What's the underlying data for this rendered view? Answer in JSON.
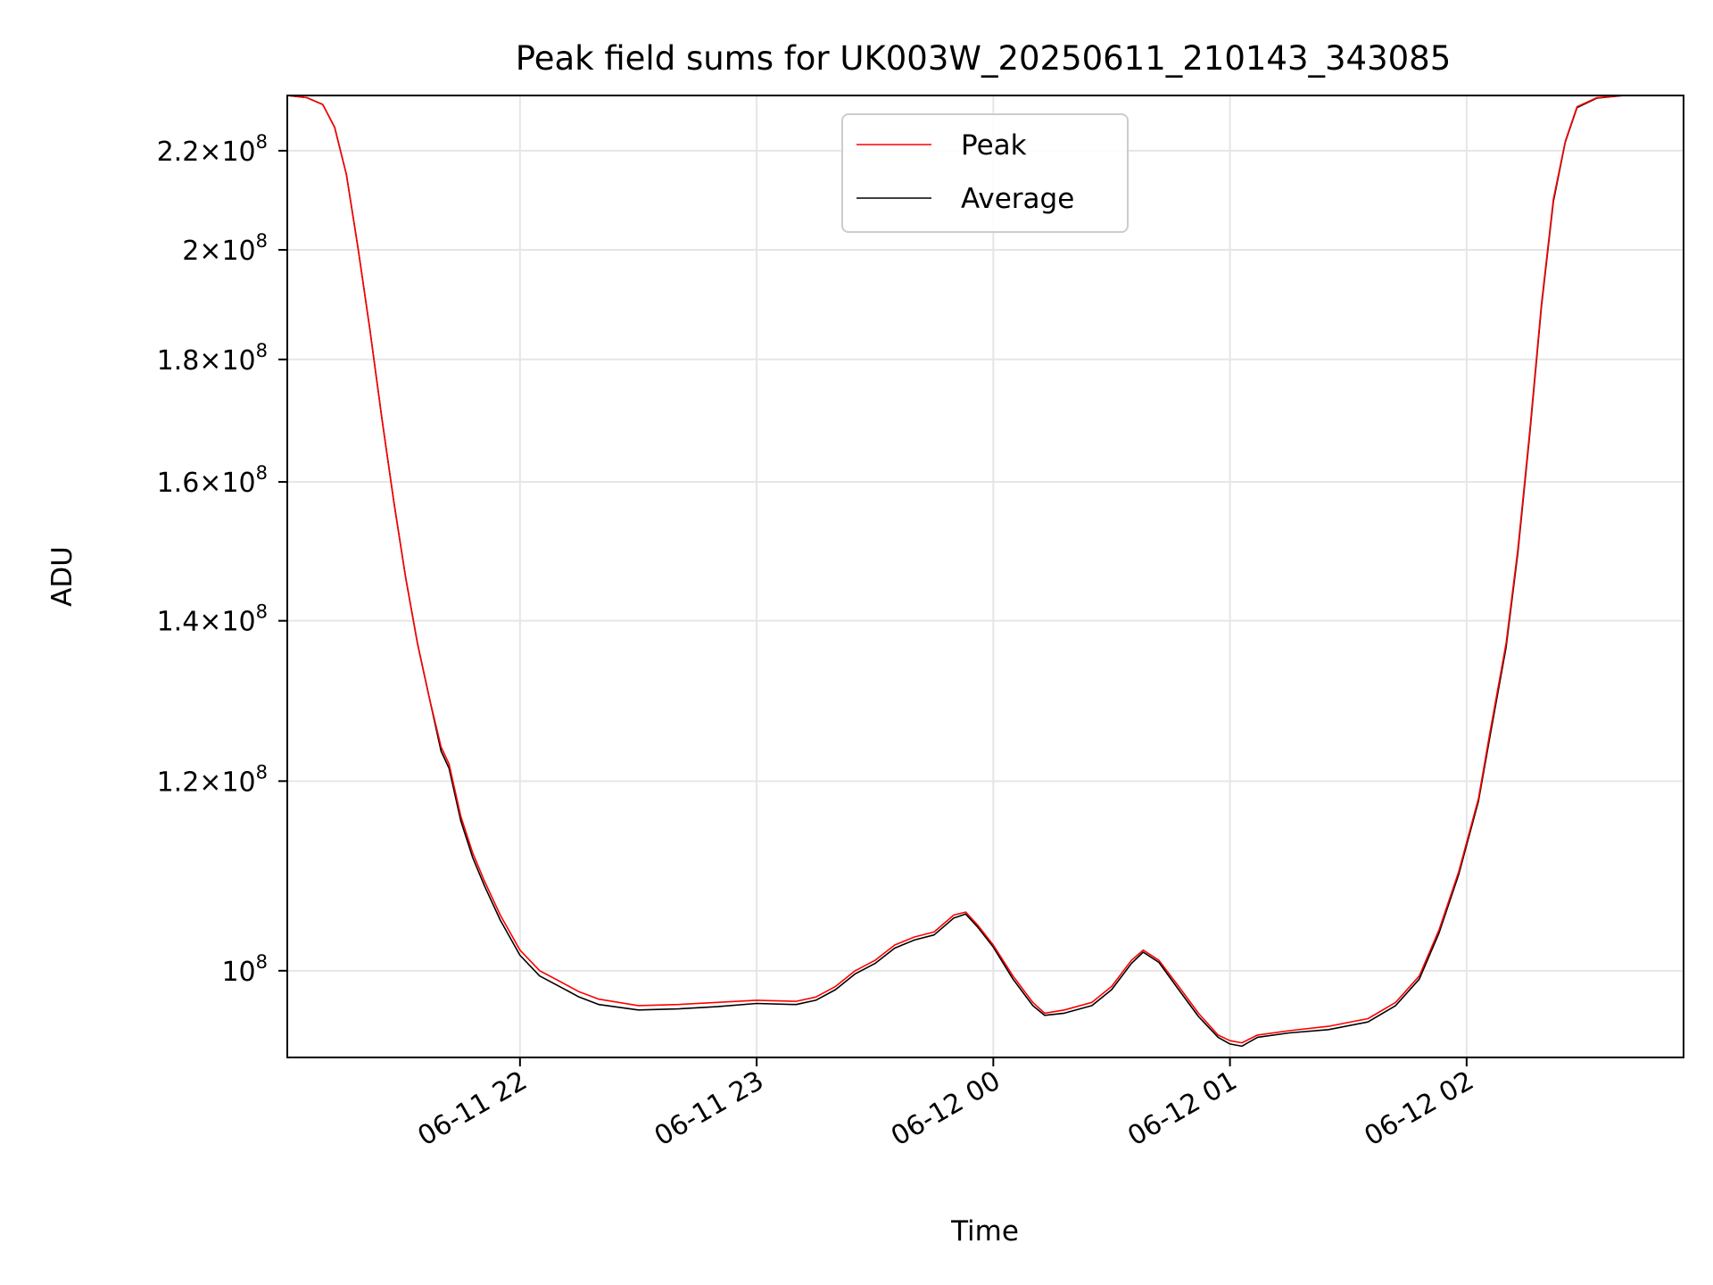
{
  "chart_data": {
    "type": "line",
    "title": "Peak field sums for UK003W_20250611_210143_343085",
    "xlabel": "Time",
    "ylabel": "ADU",
    "xlim": [
      "2025-06-11 21:01",
      "2025-06-12 02:55"
    ],
    "ylim": [
      92000000,
      232000000
    ],
    "y_scale": "log",
    "grid": true,
    "legend": {
      "placement": "upper center",
      "entries": [
        "Peak",
        "Average"
      ]
    },
    "x_ticks": [
      {
        "value": "2025-06-11 22:00",
        "label": "06-11 22"
      },
      {
        "value": "2025-06-11 23:00",
        "label": "06-11 23"
      },
      {
        "value": "2025-06-12 00:00",
        "label": "06-12 00"
      },
      {
        "value": "2025-06-12 01:00",
        "label": "06-12 01"
      },
      {
        "value": "2025-06-12 02:00",
        "label": "06-12 02"
      }
    ],
    "y_ticks": [
      {
        "value": 100000000,
        "base": "10",
        "exp": "8"
      },
      {
        "value": 120000000,
        "base": "1.2×10",
        "exp": "8"
      },
      {
        "value": 140000000,
        "base": "1.4×10",
        "exp": "8"
      },
      {
        "value": 160000000,
        "base": "1.6×10",
        "exp": "8"
      },
      {
        "value": 180000000,
        "base": "1.8×10",
        "exp": "8"
      },
      {
        "value": 200000000,
        "base": "2×10",
        "exp": "8"
      },
      {
        "value": 220000000,
        "base": "2.2×10",
        "exp": "8"
      }
    ],
    "series": [
      {
        "name": "Peak",
        "color": "#ff0000",
        "points": [
          [
            "2025-06-11 21:01",
            232000000
          ],
          [
            "2025-06-11 21:06",
            231500000
          ],
          [
            "2025-06-11 21:10",
            230000000
          ],
          [
            "2025-06-11 21:13",
            225000000
          ],
          [
            "2025-06-11 21:16",
            215000000
          ],
          [
            "2025-06-11 21:19",
            200000000
          ],
          [
            "2025-06-11 21:22",
            185000000
          ],
          [
            "2025-06-11 21:25",
            170000000
          ],
          [
            "2025-06-11 21:28",
            157000000
          ],
          [
            "2025-06-11 21:31",
            146000000
          ],
          [
            "2025-06-11 21:34",
            137000000
          ],
          [
            "2025-06-11 21:37",
            130000000
          ],
          [
            "2025-06-11 21:40",
            124000000
          ],
          [
            "2025-06-11 21:42",
            122000000
          ],
          [
            "2025-06-11 21:45",
            116000000
          ],
          [
            "2025-06-11 21:48",
            112000000
          ],
          [
            "2025-06-11 21:51",
            109000000
          ],
          [
            "2025-06-11 21:55",
            105500000
          ],
          [
            "2025-06-11 22:00",
            102000000
          ],
          [
            "2025-06-11 22:05",
            100000000
          ],
          [
            "2025-06-11 22:10",
            99000000
          ],
          [
            "2025-06-11 22:15",
            98000000
          ],
          [
            "2025-06-11 22:20",
            97300000
          ],
          [
            "2025-06-11 22:30",
            96700000
          ],
          [
            "2025-06-11 22:40",
            96800000
          ],
          [
            "2025-06-11 22:50",
            97000000
          ],
          [
            "2025-06-11 23:00",
            97200000
          ],
          [
            "2025-06-11 23:10",
            97100000
          ],
          [
            "2025-06-11 23:15",
            97500000
          ],
          [
            "2025-06-11 23:20",
            98500000
          ],
          [
            "2025-06-11 23:25",
            100000000
          ],
          [
            "2025-06-11 23:30",
            101000000
          ],
          [
            "2025-06-11 23:35",
            102500000
          ],
          [
            "2025-06-11 23:40",
            103300000
          ],
          [
            "2025-06-11 23:45",
            103800000
          ],
          [
            "2025-06-11 23:50",
            105500000
          ],
          [
            "2025-06-11 23:53",
            105800000
          ],
          [
            "2025-06-11 23:56",
            104500000
          ],
          [
            "2025-06-12 00:00",
            102500000
          ],
          [
            "2025-06-12 00:05",
            99500000
          ],
          [
            "2025-06-12 00:10",
            97000000
          ],
          [
            "2025-06-12 00:13",
            96000000
          ],
          [
            "2025-06-12 00:18",
            96300000
          ],
          [
            "2025-06-12 00:25",
            97000000
          ],
          [
            "2025-06-12 00:30",
            98500000
          ],
          [
            "2025-06-12 00:35",
            101000000
          ],
          [
            "2025-06-12 00:38",
            102000000
          ],
          [
            "2025-06-12 00:42",
            101000000
          ],
          [
            "2025-06-12 00:47",
            98500000
          ],
          [
            "2025-06-12 00:52",
            96000000
          ],
          [
            "2025-06-12 00:57",
            94000000
          ],
          [
            "2025-06-12 01:00",
            93500000
          ],
          [
            "2025-06-12 01:03",
            93300000
          ],
          [
            "2025-06-12 01:07",
            94000000
          ],
          [
            "2025-06-12 01:15",
            94400000
          ],
          [
            "2025-06-12 01:25",
            94800000
          ],
          [
            "2025-06-12 01:35",
            95500000
          ],
          [
            "2025-06-12 01:42",
            97000000
          ],
          [
            "2025-06-12 01:48",
            99500000
          ],
          [
            "2025-06-12 01:53",
            104000000
          ],
          [
            "2025-06-12 01:58",
            110000000
          ],
          [
            "2025-06-12 02:03",
            118000000
          ],
          [
            "2025-06-12 02:06",
            126000000
          ],
          [
            "2025-06-12 02:10",
            137000000
          ],
          [
            "2025-06-12 02:13",
            150000000
          ],
          [
            "2025-06-12 02:16",
            168000000
          ],
          [
            "2025-06-12 02:19",
            190000000
          ],
          [
            "2025-06-12 02:22",
            210000000
          ],
          [
            "2025-06-12 02:25",
            222000000
          ],
          [
            "2025-06-12 02:28",
            229500000
          ],
          [
            "2025-06-12 02:33",
            231500000
          ],
          [
            "2025-06-12 02:40",
            232000000
          ],
          [
            "2025-06-12 02:55",
            232000000
          ]
        ]
      },
      {
        "name": "Average",
        "color": "#000000",
        "points": [
          [
            "2025-06-11 21:01",
            232000000
          ],
          [
            "2025-06-11 21:06",
            231500000
          ],
          [
            "2025-06-11 21:10",
            230000000
          ],
          [
            "2025-06-11 21:13",
            225000000
          ],
          [
            "2025-06-11 21:16",
            215000000
          ],
          [
            "2025-06-11 21:19",
            200000000
          ],
          [
            "2025-06-11 21:22",
            185000000
          ],
          [
            "2025-06-11 21:25",
            170000000
          ],
          [
            "2025-06-11 21:28",
            157000000
          ],
          [
            "2025-06-11 21:31",
            146000000
          ],
          [
            "2025-06-11 21:34",
            137000000
          ],
          [
            "2025-06-11 21:37",
            130000000
          ],
          [
            "2025-06-11 21:40",
            123500000
          ],
          [
            "2025-06-11 21:42",
            121500000
          ],
          [
            "2025-06-11 21:45",
            115500000
          ],
          [
            "2025-06-11 21:48",
            111500000
          ],
          [
            "2025-06-11 21:51",
            108500000
          ],
          [
            "2025-06-11 21:55",
            105000000
          ],
          [
            "2025-06-11 22:00",
            101500000
          ],
          [
            "2025-06-11 22:05",
            99500000
          ],
          [
            "2025-06-11 22:10",
            98500000
          ],
          [
            "2025-06-11 22:15",
            97500000
          ],
          [
            "2025-06-11 22:20",
            96800000
          ],
          [
            "2025-06-11 22:30",
            96300000
          ],
          [
            "2025-06-11 22:40",
            96400000
          ],
          [
            "2025-06-11 22:50",
            96600000
          ],
          [
            "2025-06-11 23:00",
            96900000
          ],
          [
            "2025-06-11 23:10",
            96800000
          ],
          [
            "2025-06-11 23:15",
            97200000
          ],
          [
            "2025-06-11 23:20",
            98200000
          ],
          [
            "2025-06-11 23:25",
            99700000
          ],
          [
            "2025-06-11 23:30",
            100700000
          ],
          [
            "2025-06-11 23:35",
            102200000
          ],
          [
            "2025-06-11 23:40",
            103000000
          ],
          [
            "2025-06-11 23:45",
            103500000
          ],
          [
            "2025-06-11 23:50",
            105200000
          ],
          [
            "2025-06-11 23:53",
            105600000
          ],
          [
            "2025-06-11 23:56",
            104300000
          ],
          [
            "2025-06-12 00:00",
            102300000
          ],
          [
            "2025-06-12 00:05",
            99200000
          ],
          [
            "2025-06-12 00:10",
            96700000
          ],
          [
            "2025-06-12 00:13",
            95800000
          ],
          [
            "2025-06-12 00:18",
            96000000
          ],
          [
            "2025-06-12 00:25",
            96700000
          ],
          [
            "2025-06-12 00:30",
            98200000
          ],
          [
            "2025-06-12 00:35",
            100700000
          ],
          [
            "2025-06-12 00:38",
            101800000
          ],
          [
            "2025-06-12 00:42",
            100800000
          ],
          [
            "2025-06-12 00:47",
            98200000
          ],
          [
            "2025-06-12 00:52",
            95700000
          ],
          [
            "2025-06-12 00:57",
            93800000
          ],
          [
            "2025-06-12 01:00",
            93200000
          ],
          [
            "2025-06-12 01:03",
            93000000
          ],
          [
            "2025-06-12 01:07",
            93800000
          ],
          [
            "2025-06-12 01:15",
            94200000
          ],
          [
            "2025-06-12 01:25",
            94500000
          ],
          [
            "2025-06-12 01:35",
            95200000
          ],
          [
            "2025-06-12 01:42",
            96700000
          ],
          [
            "2025-06-12 01:48",
            99200000
          ],
          [
            "2025-06-12 01:53",
            103700000
          ],
          [
            "2025-06-12 01:58",
            109700000
          ],
          [
            "2025-06-12 02:03",
            117700000
          ],
          [
            "2025-06-12 02:06",
            125500000
          ],
          [
            "2025-06-12 02:10",
            136500000
          ],
          [
            "2025-06-12 02:13",
            149500000
          ],
          [
            "2025-06-12 02:16",
            167500000
          ],
          [
            "2025-06-12 02:19",
            189500000
          ],
          [
            "2025-06-12 02:22",
            209500000
          ],
          [
            "2025-06-12 02:25",
            221800000
          ],
          [
            "2025-06-12 02:28",
            229300000
          ],
          [
            "2025-06-12 02:33",
            231400000
          ],
          [
            "2025-06-12 02:40",
            232000000
          ],
          [
            "2025-06-12 02:55",
            232000000
          ]
        ]
      }
    ]
  }
}
